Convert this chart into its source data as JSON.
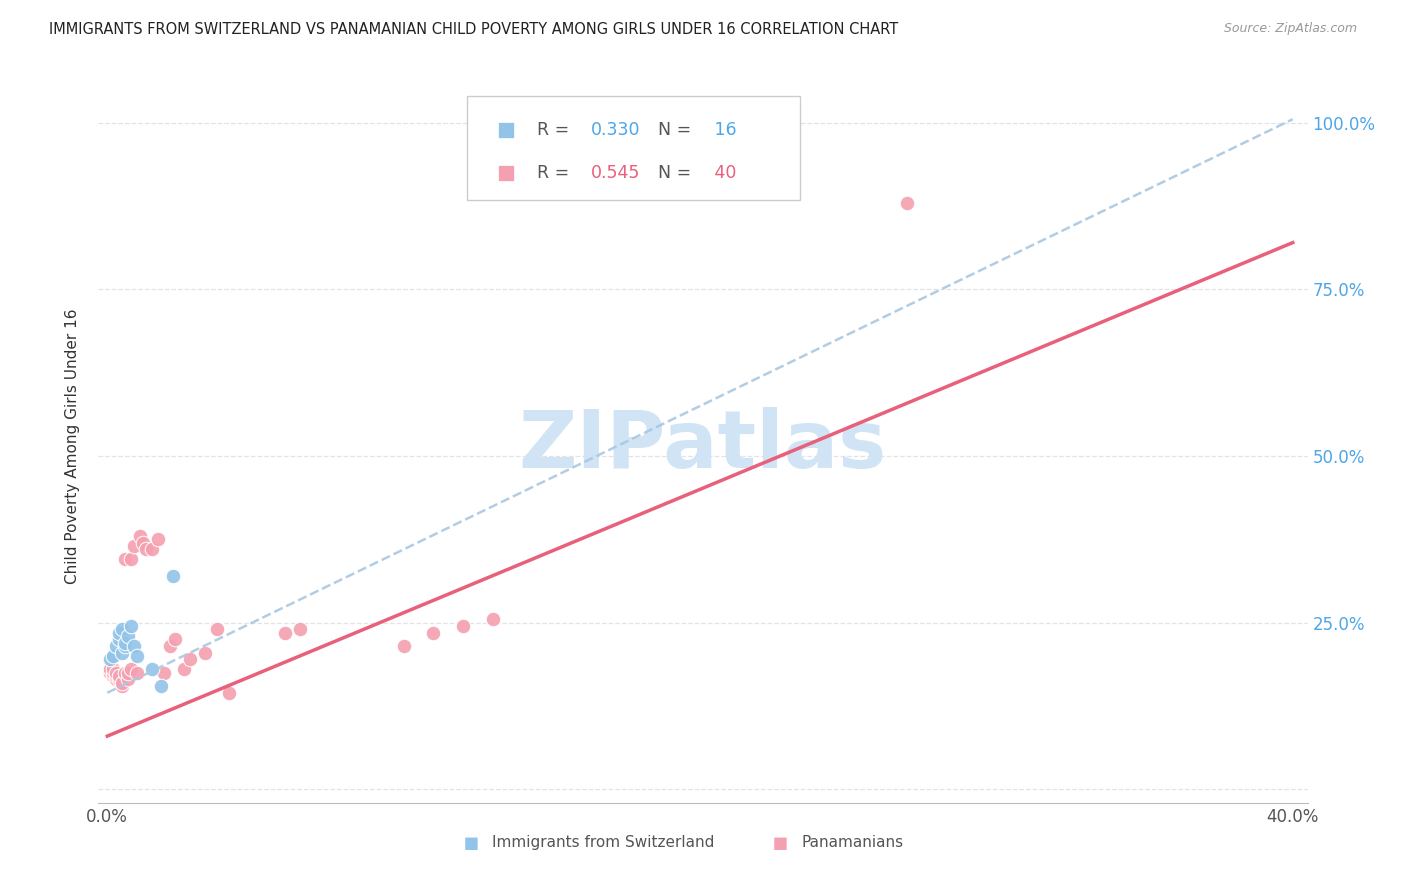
{
  "title": "IMMIGRANTS FROM SWITZERLAND VS PANAMANIAN CHILD POVERTY AMONG GIRLS UNDER 16 CORRELATION CHART",
  "source": "Source: ZipAtlas.com",
  "ylabel": "Child Poverty Among Girls Under 16",
  "legend_label_blue": "Immigrants from Switzerland",
  "legend_label_pink": "Panamanians",
  "blue_color": "#91c4e8",
  "pink_color": "#f4a0b0",
  "blue_line_color": "#aac8e0",
  "pink_line_color": "#e8607a",
  "blue_r_color": "#4da6e8",
  "pink_r_color": "#e8607a",
  "watermark": "ZIPatlas",
  "watermark_color": "#d0e4f5",
  "blue_r": 0.33,
  "pink_r": 0.545,
  "blue_n": 16,
  "pink_n": 40,
  "blue_line_slope": 2.15,
  "blue_line_intercept": 0.145,
  "pink_line_slope": 1.85,
  "pink_line_intercept": 0.08,
  "blue_x": [
    0.001,
    0.002,
    0.003,
    0.004,
    0.004,
    0.005,
    0.005,
    0.006,
    0.006,
    0.007,
    0.008,
    0.009,
    0.01,
    0.015,
    0.018,
    0.022
  ],
  "blue_y": [
    0.195,
    0.2,
    0.215,
    0.225,
    0.235,
    0.24,
    0.205,
    0.215,
    0.22,
    0.23,
    0.245,
    0.215,
    0.2,
    0.18,
    0.155,
    0.32
  ],
  "pink_x": [
    0.001,
    0.001,
    0.002,
    0.002,
    0.002,
    0.003,
    0.003,
    0.003,
    0.004,
    0.004,
    0.005,
    0.005,
    0.006,
    0.006,
    0.007,
    0.007,
    0.008,
    0.008,
    0.009,
    0.01,
    0.011,
    0.012,
    0.013,
    0.015,
    0.017,
    0.019,
    0.021,
    0.023,
    0.026,
    0.028,
    0.033,
    0.037,
    0.041,
    0.06,
    0.065,
    0.1,
    0.11,
    0.12,
    0.13,
    0.27
  ],
  "pink_y": [
    0.175,
    0.18,
    0.17,
    0.175,
    0.18,
    0.165,
    0.17,
    0.175,
    0.165,
    0.17,
    0.155,
    0.16,
    0.175,
    0.345,
    0.165,
    0.175,
    0.18,
    0.345,
    0.365,
    0.175,
    0.38,
    0.37,
    0.36,
    0.36,
    0.375,
    0.175,
    0.215,
    0.225,
    0.18,
    0.195,
    0.205,
    0.24,
    0.145,
    0.235,
    0.24,
    0.215,
    0.235,
    0.245,
    0.255,
    0.88
  ],
  "xlim": [
    -0.003,
    0.405
  ],
  "ylim": [
    -0.02,
    1.05
  ],
  "x_tick_positions": [
    0.0,
    0.05,
    0.1,
    0.15,
    0.2,
    0.25,
    0.3,
    0.35,
    0.4
  ],
  "y_tick_positions": [
    0.0,
    0.25,
    0.5,
    0.75,
    1.0
  ],
  "y_tick_labels": [
    "",
    "25.0%",
    "50.0%",
    "75.0%",
    "100.0%"
  ]
}
